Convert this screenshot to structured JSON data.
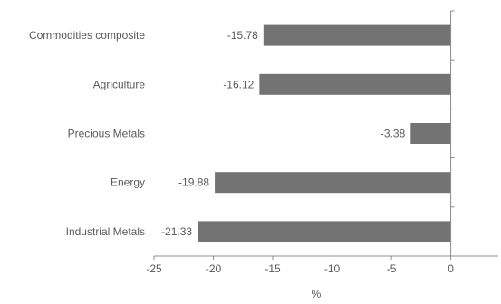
{
  "chart_data": {
    "type": "bar",
    "orientation": "horizontal",
    "categories": [
      "Commodities composite",
      "Agriculture",
      "Precious Metals",
      "Energy",
      "Industrial Metals"
    ],
    "values": [
      -15.78,
      -16.12,
      -3.38,
      -19.88,
      -21.33
    ],
    "data_labels": [
      "-15.78",
      "-16.12",
      "-3.38",
      "-19.88",
      "-21.33"
    ],
    "xlabel": "%",
    "ylabel": "",
    "xlim": [
      -25,
      4
    ],
    "xticks": [
      -25,
      -20,
      -15,
      -10,
      -5,
      0
    ],
    "xtick_labels": [
      "-25",
      "-20",
      "-15",
      "-10",
      "-5",
      "0"
    ],
    "grid": false,
    "legend": "none",
    "bar_color": "#737373",
    "text_color": "#595959",
    "axis_color": "#8c8c8c"
  }
}
